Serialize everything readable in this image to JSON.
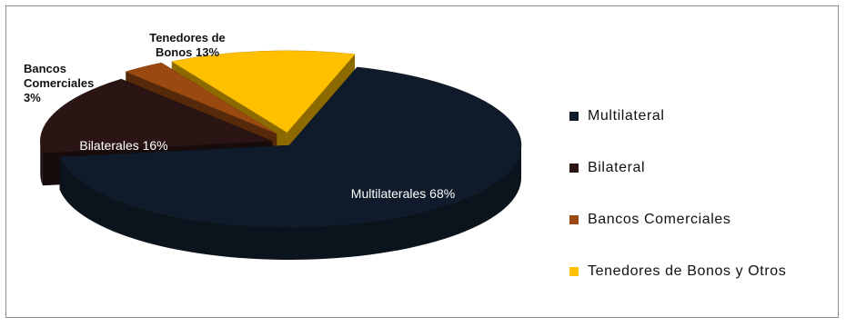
{
  "chart_data": {
    "type": "pie",
    "three_d": true,
    "exploded": true,
    "categories": [
      "Multilateral",
      "Bilateral",
      "Bancos Comerciales",
      "Tenedores de Bonos y Otros"
    ],
    "values": [
      68,
      16,
      3,
      13
    ],
    "colors": [
      "#0f1b2a",
      "#2a1414",
      "#9a4a10",
      "#ffc000"
    ],
    "data_labels": [
      "Multilaterales 68%",
      "Bilaterales  16%",
      [
        "Bancos",
        "Comerciales",
        "3%"
      ],
      [
        "Tenedores de",
        "Bonos 13%"
      ]
    ],
    "legend": {
      "position": "right",
      "entries": [
        "Multilateral",
        "Bilateral",
        "Bancos Comerciales",
        "Tenedores de Bonos y Otros"
      ]
    },
    "title": ""
  }
}
